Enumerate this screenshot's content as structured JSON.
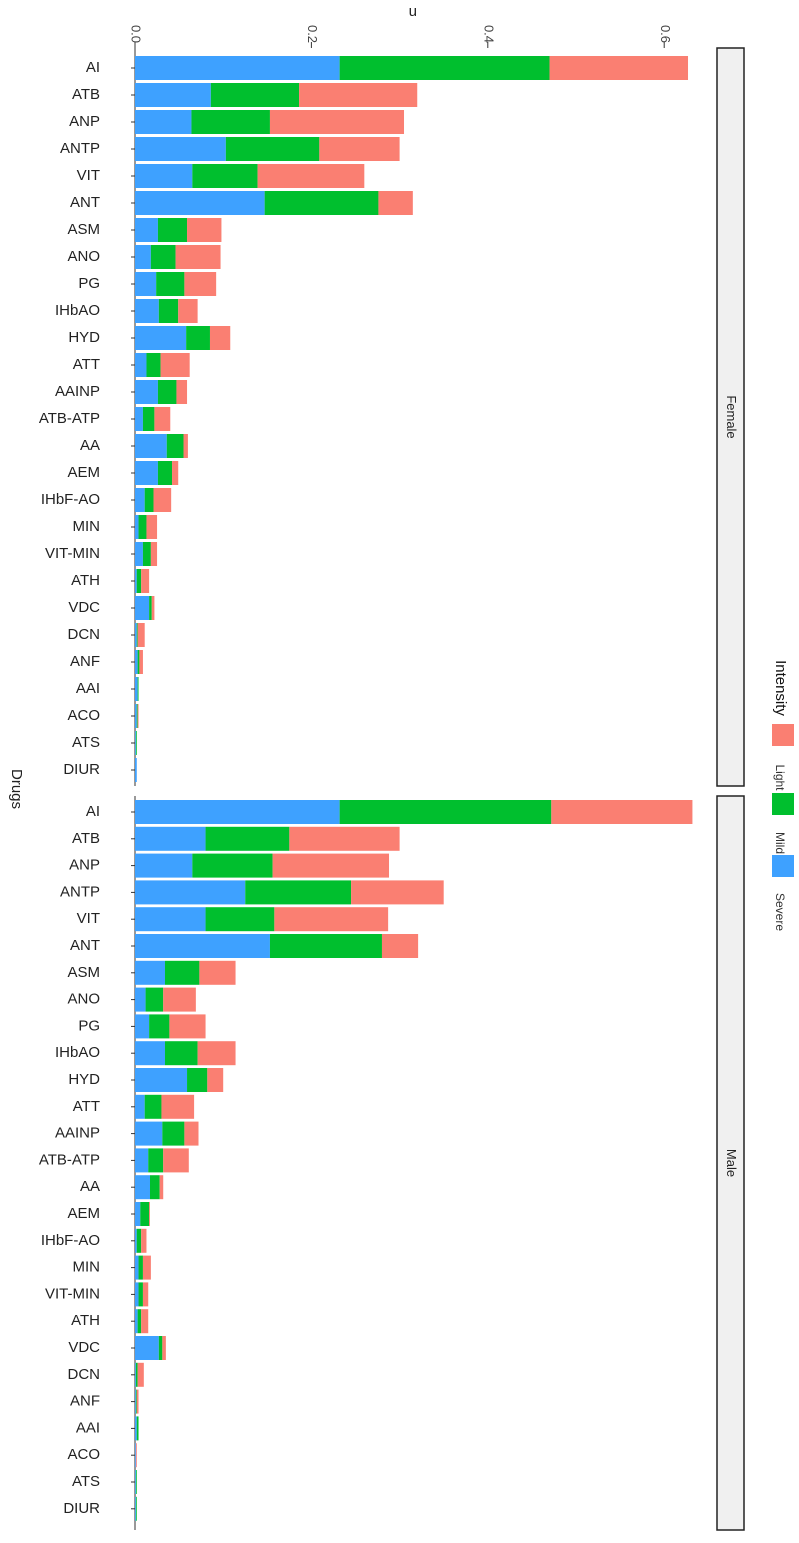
{
  "chart_data": {
    "type": "bar",
    "orientation": "horizontal-stacked",
    "title": "",
    "xlabel": "n",
    "ylabel": "Drugs",
    "xlim": [
      0,
      0.66
    ],
    "xticks": [
      "0.0",
      "0.2",
      "0.4",
      "0.6"
    ],
    "x_tick_values": [
      0,
      0.2,
      0.4,
      0.6
    ],
    "grid": false,
    "legend": {
      "title": "Intensity",
      "position": "right",
      "entries": [
        "Light",
        "Mild",
        "Severe"
      ]
    },
    "colors": {
      "Severe": "#3ea1ff",
      "Mild": "#00bf2e",
      "Light": "#fa7f72"
    },
    "categories": [
      "AI",
      "ATB",
      "ANP",
      "ANTP",
      "VIT",
      "ANT",
      "ASM",
      "ANO",
      "PG",
      "IHbAO",
      "HYD",
      "ATT",
      "AAINP",
      "ATB-ATP",
      "AA",
      "AEM",
      "IHbF-AO",
      "MIN",
      "VIT-MIN",
      "ATH",
      "VDC",
      "DCN",
      "ANF",
      "AAI",
      "ACO",
      "ATS",
      "DIUR"
    ],
    "panels": [
      {
        "name": "Female",
        "series": [
          {
            "name": "Severe",
            "values": [
              0.232,
              0.086,
              0.064,
              0.103,
              0.065,
              0.147,
              0.026,
              0.018,
              0.024,
              0.027,
              0.058,
              0.013,
              0.026,
              0.009,
              0.036,
              0.026,
              0.011,
              0.004,
              0.009,
              0.002,
              0.016,
              0.002,
              0.003,
              0.003,
              0.002,
              0.001,
              0.002
            ]
          },
          {
            "name": "Mild",
            "values": [
              0.238,
              0.1,
              0.089,
              0.106,
              0.074,
              0.129,
              0.033,
              0.028,
              0.032,
              0.022,
              0.027,
              0.016,
              0.021,
              0.013,
              0.019,
              0.016,
              0.01,
              0.009,
              0.009,
              0.005,
              0.003,
              0.001,
              0.002,
              0.001,
              0.001,
              0.001,
              0.0
            ]
          },
          {
            "name": "Light",
            "values": [
              0.157,
              0.134,
              0.152,
              0.091,
              0.121,
              0.039,
              0.039,
              0.051,
              0.036,
              0.022,
              0.023,
              0.033,
              0.012,
              0.018,
              0.005,
              0.007,
              0.02,
              0.012,
              0.007,
              0.009,
              0.003,
              0.008,
              0.004,
              0.0,
              0.001,
              0.0,
              0.0
            ]
          }
        ]
      },
      {
        "name": "Male",
        "series": [
          {
            "name": "Severe",
            "values": [
              0.232,
              0.08,
              0.065,
              0.125,
              0.08,
              0.153,
              0.034,
              0.012,
              0.016,
              0.034,
              0.059,
              0.011,
              0.031,
              0.015,
              0.017,
              0.006,
              0.002,
              0.004,
              0.004,
              0.003,
              0.027,
              0.001,
              0.001,
              0.002,
              0.001,
              0.001,
              0.001
            ]
          },
          {
            "name": "Mild",
            "values": [
              0.24,
              0.095,
              0.091,
              0.12,
              0.078,
              0.127,
              0.039,
              0.02,
              0.023,
              0.037,
              0.023,
              0.019,
              0.025,
              0.017,
              0.011,
              0.01,
              0.005,
              0.005,
              0.005,
              0.004,
              0.004,
              0.002,
              0.001,
              0.002,
              0.0,
              0.001,
              0.001
            ]
          },
          {
            "name": "Light",
            "values": [
              0.16,
              0.125,
              0.132,
              0.105,
              0.129,
              0.041,
              0.041,
              0.037,
              0.041,
              0.043,
              0.018,
              0.037,
              0.016,
              0.029,
              0.004,
              0.001,
              0.006,
              0.009,
              0.006,
              0.008,
              0.004,
              0.007,
              0.002,
              0.0,
              0.001,
              0.0,
              0.0
            ]
          }
        ]
      }
    ]
  }
}
